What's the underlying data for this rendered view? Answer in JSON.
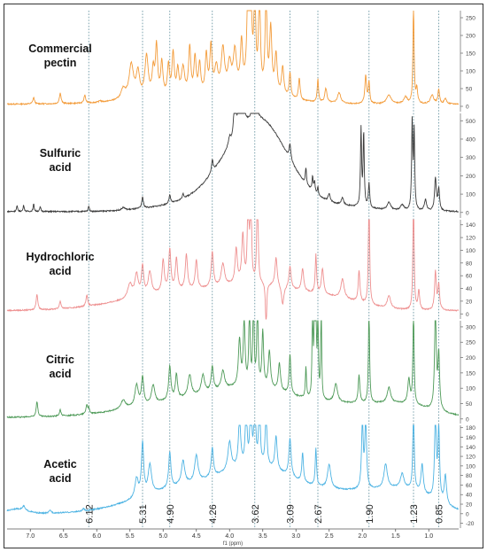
{
  "chart_data": {
    "type": "line",
    "subtype": "stacked NMR spectra",
    "xlabel": "f1 (ppm)",
    "x_reversed": true,
    "x_ticks": [
      "7.0",
      "6.5",
      "6.0",
      "5.5",
      "5.0",
      "4.5",
      "4.0",
      "3.5",
      "3.0",
      "2.5",
      "2.0",
      "1.5",
      "1.0"
    ],
    "xlim": [
      7.35,
      0.55
    ],
    "reference_lines": [
      {
        "ppm": 6.12,
        "label": "6.12"
      },
      {
        "ppm": 5.31,
        "label": "5.31"
      },
      {
        "ppm": 4.9,
        "label": "4.90"
      },
      {
        "ppm": 4.26,
        "label": "4.26"
      },
      {
        "ppm": 3.62,
        "label": "3.62"
      },
      {
        "ppm": 3.09,
        "label": "3.09"
      },
      {
        "ppm": 2.67,
        "label": "2.67"
      },
      {
        "ppm": 1.9,
        "label": "1.90"
      },
      {
        "ppm": 1.23,
        "label": "1.23"
      },
      {
        "ppm": 0.85,
        "label": "0.85"
      }
    ],
    "series": [
      {
        "name": "Commercial pectin",
        "label_lines": [
          "Commercial",
          "pectin"
        ],
        "color": "#F39C3B",
        "y_ticks": [
          0,
          50,
          100,
          150,
          200,
          250
        ],
        "ylim": [
          -15,
          270
        ],
        "baseline": 6,
        "broad": [
          [
            5.3,
            0.35,
            6
          ],
          [
            4.6,
            0.9,
            10
          ],
          [
            3.7,
            0.5,
            25
          ]
        ],
        "peaks": [
          [
            6.95,
            0.015,
            18
          ],
          [
            6.55,
            0.015,
            30
          ],
          [
            6.18,
            0.015,
            22
          ],
          [
            5.95,
            0.015,
            5
          ],
          [
            5.6,
            0.04,
            28
          ],
          [
            5.48,
            0.04,
            95
          ],
          [
            5.38,
            0.03,
            70
          ],
          [
            5.25,
            0.03,
            115
          ],
          [
            5.15,
            0.02,
            70
          ],
          [
            5.1,
            0.02,
            140
          ],
          [
            5.02,
            0.02,
            95
          ],
          [
            4.92,
            0.02,
            85
          ],
          [
            4.85,
            0.02,
            120
          ],
          [
            4.78,
            0.02,
            70
          ],
          [
            4.7,
            0.03,
            80
          ],
          [
            4.6,
            0.02,
            135
          ],
          [
            4.52,
            0.02,
            105
          ],
          [
            4.45,
            0.02,
            85
          ],
          [
            4.35,
            0.02,
            110
          ],
          [
            4.28,
            0.02,
            130
          ],
          [
            4.2,
            0.03,
            70
          ],
          [
            4.1,
            0.03,
            120
          ],
          [
            4.0,
            0.03,
            75
          ],
          [
            3.92,
            0.03,
            110
          ],
          [
            3.82,
            0.02,
            130
          ],
          [
            3.72,
            0.02,
            300
          ],
          [
            3.68,
            0.02,
            220
          ],
          [
            3.62,
            0.015,
            300
          ],
          [
            3.55,
            0.015,
            300
          ],
          [
            3.45,
            0.015,
            300
          ],
          [
            3.38,
            0.02,
            180
          ],
          [
            3.3,
            0.02,
            110
          ],
          [
            3.2,
            0.02,
            80
          ],
          [
            3.09,
            0.015,
            70
          ],
          [
            2.95,
            0.015,
            60
          ],
          [
            2.67,
            0.012,
            65
          ],
          [
            2.55,
            0.02,
            40
          ],
          [
            2.35,
            0.03,
            30
          ],
          [
            1.95,
            0.015,
            80
          ],
          [
            1.9,
            0.012,
            60
          ],
          [
            1.6,
            0.04,
            25
          ],
          [
            1.35,
            0.03,
            20
          ],
          [
            1.23,
            0.01,
            290
          ],
          [
            1.18,
            0.015,
            40
          ],
          [
            0.95,
            0.03,
            25
          ],
          [
            0.85,
            0.015,
            40
          ],
          [
            0.75,
            0.02,
            15
          ]
        ]
      },
      {
        "name": "Sulfuric acid",
        "label_lines": [
          "Sulfuric",
          "acid"
        ],
        "color": "#3a3a3a",
        "y_ticks": [
          0,
          100,
          200,
          300,
          400,
          500
        ],
        "ylim": [
          -30,
          540
        ],
        "baseline": 5,
        "broad": [
          [
            3.55,
            0.42,
            470
          ],
          [
            4.15,
            0.4,
            95
          ],
          [
            4.9,
            0.45,
            25
          ],
          [
            2.6,
            0.6,
            35
          ]
        ],
        "peaks": [
          [
            7.2,
            0.01,
            30
          ],
          [
            7.1,
            0.01,
            35
          ],
          [
            6.95,
            0.01,
            40
          ],
          [
            6.85,
            0.01,
            25
          ],
          [
            6.12,
            0.01,
            30
          ],
          [
            5.6,
            0.03,
            15
          ],
          [
            5.31,
            0.015,
            60
          ],
          [
            4.9,
            0.015,
            45
          ],
          [
            4.7,
            0.015,
            25
          ],
          [
            4.26,
            0.015,
            70
          ],
          [
            4.0,
            0.02,
            40
          ],
          [
            3.92,
            0.015,
            290
          ],
          [
            3.85,
            0.015,
            320
          ],
          [
            3.8,
            0.015,
            350
          ],
          [
            3.66,
            0.01,
            110
          ],
          [
            3.62,
            0.01,
            110
          ],
          [
            3.58,
            0.01,
            100
          ],
          [
            3.09,
            0.015,
            85
          ],
          [
            2.85,
            0.01,
            90
          ],
          [
            2.75,
            0.01,
            80
          ],
          [
            2.72,
            0.01,
            60
          ],
          [
            2.67,
            0.01,
            45
          ],
          [
            2.5,
            0.02,
            40
          ],
          [
            2.3,
            0.02,
            40
          ],
          [
            2.02,
            0.01,
            420
          ],
          [
            1.98,
            0.01,
            400
          ],
          [
            1.9,
            0.012,
            130
          ],
          [
            1.6,
            0.03,
            40
          ],
          [
            1.4,
            0.03,
            30
          ],
          [
            1.25,
            0.01,
            480
          ],
          [
            1.22,
            0.01,
            420
          ],
          [
            1.05,
            0.02,
            60
          ],
          [
            0.9,
            0.015,
            180
          ],
          [
            0.85,
            0.015,
            120
          ]
        ]
      },
      {
        "name": "Hydrochloric acid",
        "label_lines": [
          "Hydrochloric",
          "acid"
        ],
        "color": "#EE9090",
        "y_ticks": [
          0,
          20,
          40,
          60,
          80,
          100,
          120,
          140
        ],
        "ylim": [
          -8,
          148
        ],
        "baseline": 5,
        "broad": [
          [
            4.6,
            0.9,
            30
          ],
          [
            3.5,
            0.5,
            25
          ],
          [
            2.5,
            0.5,
            18
          ]
        ],
        "peaks": [
          [
            6.9,
            0.015,
            25
          ],
          [
            6.55,
            0.015,
            12
          ],
          [
            6.15,
            0.015,
            18
          ],
          [
            5.5,
            0.04,
            22
          ],
          [
            5.4,
            0.03,
            35
          ],
          [
            5.31,
            0.02,
            45
          ],
          [
            5.2,
            0.03,
            35
          ],
          [
            5.0,
            0.02,
            50
          ],
          [
            4.9,
            0.02,
            65
          ],
          [
            4.8,
            0.02,
            50
          ],
          [
            4.65,
            0.02,
            55
          ],
          [
            4.5,
            0.02,
            45
          ],
          [
            4.26,
            0.02,
            55
          ],
          [
            4.1,
            0.03,
            35
          ],
          [
            3.9,
            0.02,
            55
          ],
          [
            3.8,
            0.02,
            75
          ],
          [
            3.72,
            0.01,
            200
          ],
          [
            3.68,
            0.01,
            200
          ],
          [
            3.58,
            0.01,
            200
          ],
          [
            3.45,
            0.01,
            -80
          ],
          [
            3.3,
            0.02,
            45
          ],
          [
            3.2,
            0.02,
            -30
          ],
          [
            3.09,
            0.02,
            35
          ],
          [
            2.9,
            0.02,
            35
          ],
          [
            2.7,
            0.012,
            60
          ],
          [
            2.6,
            0.02,
            40
          ],
          [
            2.3,
            0.03,
            30
          ],
          [
            2.05,
            0.015,
            50
          ],
          [
            1.9,
            0.01,
            200
          ],
          [
            1.6,
            0.03,
            20
          ],
          [
            1.23,
            0.01,
            200
          ],
          [
            1.15,
            0.015,
            30
          ],
          [
            0.9,
            0.015,
            60
          ],
          [
            0.85,
            0.015,
            40
          ]
        ]
      },
      {
        "name": "Citric acid",
        "label_lines": [
          "Citric",
          "acid"
        ],
        "color": "#4E9A58",
        "y_ticks": [
          0,
          50,
          100,
          150,
          200,
          250,
          300
        ],
        "ylim": [
          -15,
          320
        ],
        "baseline": 5,
        "broad": [
          [
            4.5,
            0.9,
            55
          ],
          [
            3.6,
            0.55,
            60
          ],
          [
            2.2,
            0.7,
            40
          ],
          [
            1.3,
            0.4,
            25
          ]
        ],
        "peaks": [
          [
            6.9,
            0.015,
            50
          ],
          [
            6.55,
            0.015,
            20
          ],
          [
            6.15,
            0.015,
            30
          ],
          [
            6.12,
            0.01,
            20
          ],
          [
            5.6,
            0.04,
            30
          ],
          [
            5.4,
            0.03,
            70
          ],
          [
            5.31,
            0.02,
            90
          ],
          [
            5.15,
            0.03,
            60
          ],
          [
            4.9,
            0.02,
            110
          ],
          [
            4.8,
            0.02,
            80
          ],
          [
            4.6,
            0.03,
            70
          ],
          [
            4.4,
            0.03,
            60
          ],
          [
            4.26,
            0.02,
            80
          ],
          [
            4.1,
            0.03,
            60
          ],
          [
            3.85,
            0.02,
            150
          ],
          [
            3.78,
            0.015,
            220
          ],
          [
            3.7,
            0.01,
            320
          ],
          [
            3.64,
            0.01,
            340
          ],
          [
            3.58,
            0.01,
            330
          ],
          [
            3.5,
            0.015,
            180
          ],
          [
            3.4,
            0.02,
            120
          ],
          [
            3.25,
            0.02,
            90
          ],
          [
            3.09,
            0.015,
            130
          ],
          [
            2.85,
            0.01,
            100
          ],
          [
            2.75,
            0.008,
            340
          ],
          [
            2.72,
            0.008,
            340
          ],
          [
            2.7,
            0.008,
            330
          ],
          [
            2.67,
            0.008,
            320
          ],
          [
            2.62,
            0.008,
            330
          ],
          [
            2.4,
            0.03,
            60
          ],
          [
            2.05,
            0.015,
            90
          ],
          [
            1.9,
            0.01,
            320
          ],
          [
            1.6,
            0.03,
            50
          ],
          [
            1.3,
            0.02,
            80
          ],
          [
            1.23,
            0.01,
            320
          ],
          [
            0.9,
            0.015,
            330
          ],
          [
            0.85,
            0.015,
            180
          ]
        ]
      },
      {
        "name": "Acetic acid",
        "label_lines": [
          "Acetic",
          "acid"
        ],
        "color": "#4DB3E3",
        "y_ticks": [
          -20,
          0,
          20,
          40,
          60,
          80,
          100,
          120,
          140,
          160,
          180
        ],
        "ylim": [
          -30,
          185
        ],
        "baseline": 0,
        "broad": [
          [
            4.6,
            0.75,
            55
          ],
          [
            3.55,
            0.5,
            70
          ],
          [
            2.3,
            0.7,
            45
          ],
          [
            1.3,
            0.4,
            35
          ],
          [
            7.2,
            0.15,
            10
          ]
        ],
        "peaks": [
          [
            7.1,
            0.02,
            8
          ],
          [
            6.7,
            0.02,
            6
          ],
          [
            6.2,
            0.015,
            5
          ],
          [
            5.4,
            0.03,
            40
          ],
          [
            5.31,
            0.02,
            110
          ],
          [
            5.2,
            0.03,
            60
          ],
          [
            4.9,
            0.02,
            75
          ],
          [
            4.7,
            0.03,
            50
          ],
          [
            4.5,
            0.03,
            55
          ],
          [
            4.26,
            0.02,
            60
          ],
          [
            4.0,
            0.03,
            60
          ],
          [
            3.85,
            0.02,
            100
          ],
          [
            3.75,
            0.015,
            130
          ],
          [
            3.68,
            0.012,
            190
          ],
          [
            3.62,
            0.012,
            200
          ],
          [
            3.55,
            0.012,
            170
          ],
          [
            3.45,
            0.015,
            120
          ],
          [
            3.3,
            0.02,
            70
          ],
          [
            3.09,
            0.02,
            80
          ],
          [
            2.9,
            0.015,
            60
          ],
          [
            2.7,
            0.012,
            80
          ],
          [
            2.5,
            0.03,
            50
          ],
          [
            2.0,
            0.015,
            140
          ],
          [
            1.95,
            0.015,
            150
          ],
          [
            1.65,
            0.03,
            50
          ],
          [
            1.4,
            0.03,
            30
          ],
          [
            1.23,
            0.012,
            180
          ],
          [
            1.1,
            0.02,
            60
          ],
          [
            0.9,
            0.015,
            180
          ],
          [
            0.85,
            0.015,
            150
          ],
          [
            0.75,
            0.02,
            60
          ]
        ]
      }
    ]
  }
}
